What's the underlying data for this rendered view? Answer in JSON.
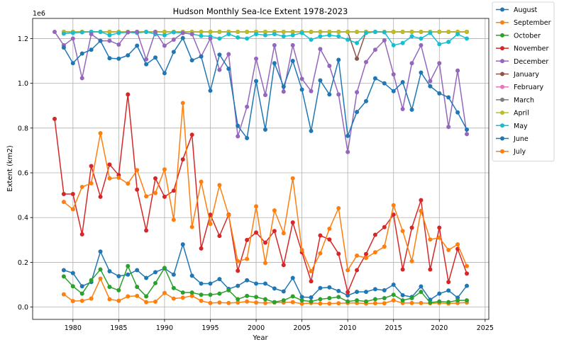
{
  "chart_data": {
    "type": "line",
    "title": "Hudson Monthly Sea-Ice Extent 1978-2023",
    "xlabel": "Year",
    "ylabel": "Extent (km2)",
    "y_offset_label": "1e6",
    "xlim": [
      1975.6,
      2025.4
    ],
    "ylim": [
      -0.055,
      1.29
    ],
    "x_ticks": [
      1980,
      1985,
      1990,
      1995,
      2000,
      2005,
      2010,
      2015,
      2020,
      2025
    ],
    "y_ticks": [
      0.0,
      0.2,
      0.4,
      0.6,
      0.8,
      1.0,
      1.2
    ],
    "y_tick_labels": [
      "0.0",
      "0.2",
      "0.4",
      "0.6",
      "0.8",
      "1.0",
      "1.2"
    ],
    "grid": true,
    "legend_position": "outside-right",
    "years": [
      1979,
      1980,
      1981,
      1982,
      1983,
      1984,
      1985,
      1986,
      1987,
      1988,
      1989,
      1990,
      1991,
      1992,
      1993,
      1994,
      1995,
      1996,
      1997,
      1998,
      1999,
      2000,
      2001,
      2002,
      2003,
      2004,
      2005,
      2006,
      2007,
      2008,
      2009,
      2010,
      2011,
      2012,
      2013,
      2014,
      2015,
      2016,
      2017,
      2018,
      2019,
      2020,
      2021,
      2022,
      2023
    ],
    "series": [
      {
        "name": "August",
        "color": "#1f77b4",
        "start": 1979,
        "values": [
          0.165,
          0.152,
          0.093,
          0.112,
          0.248,
          0.16,
          0.138,
          0.145,
          0.165,
          0.13,
          0.156,
          0.173,
          0.145,
          0.28,
          0.14,
          0.105,
          0.105,
          0.125,
          0.081,
          0.095,
          0.12,
          0.105,
          0.105,
          0.083,
          0.07,
          0.13,
          0.045,
          0.043,
          0.085,
          0.088,
          0.072,
          0.052,
          0.068,
          0.068,
          0.08,
          0.075,
          0.1,
          0.053,
          0.045,
          0.092,
          0.033,
          0.06,
          0.074,
          0.042,
          0.095
        ]
      },
      {
        "name": "September",
        "color": "#ff7f0e",
        "start": 1979,
        "values": [
          0.057,
          0.027,
          0.028,
          0.038,
          0.127,
          0.035,
          0.028,
          0.048,
          0.05,
          0.022,
          0.024,
          0.063,
          0.038,
          0.042,
          0.05,
          0.028,
          0.018,
          0.02,
          0.018,
          0.02,
          0.025,
          0.02,
          0.018,
          0.02,
          0.02,
          0.022,
          0.015,
          0.018,
          0.016,
          0.016,
          0.017,
          0.018,
          0.018,
          0.016,
          0.017,
          0.017,
          0.03,
          0.018,
          0.018,
          0.018,
          0.017,
          0.018,
          0.016,
          0.018,
          0.02
        ]
      },
      {
        "name": "October",
        "color": "#2ca02c",
        "start": 1979,
        "values": [
          0.137,
          0.093,
          0.06,
          0.12,
          0.168,
          0.09,
          0.075,
          0.183,
          0.09,
          0.048,
          0.107,
          0.175,
          0.085,
          0.065,
          0.065,
          0.055,
          0.055,
          0.06,
          0.075,
          0.035,
          0.05,
          0.045,
          0.035,
          0.022,
          0.03,
          0.048,
          0.03,
          0.025,
          0.035,
          0.04,
          0.045,
          0.025,
          0.03,
          0.025,
          0.035,
          0.04,
          0.055,
          0.03,
          0.04,
          0.068,
          0.02,
          0.025,
          0.022,
          0.03,
          0.03
        ]
      },
      {
        "name": "November",
        "color": "#d62728",
        "start": 1978,
        "values": [
          0.841,
          0.505,
          0.505,
          0.325,
          0.63,
          0.493,
          0.637,
          0.59,
          0.95,
          0.525,
          0.342,
          0.575,
          0.493,
          0.52,
          0.66,
          0.77,
          0.262,
          0.413,
          0.318,
          0.413,
          0.162,
          0.3,
          0.333,
          0.288,
          0.34,
          0.188,
          0.378,
          0.245,
          0.115,
          0.32,
          0.302,
          0.238,
          0.067,
          0.165,
          0.237,
          0.323,
          0.357,
          0.413,
          0.168,
          0.355,
          0.478,
          0.168,
          0.355,
          0.112,
          0.26,
          0.15
        ]
      },
      {
        "name": "December",
        "color": "#9467bd",
        "start": 1978,
        "values": [
          1.23,
          1.17,
          1.2,
          1.023,
          1.22,
          1.19,
          1.19,
          1.173,
          1.228,
          1.23,
          1.107,
          1.23,
          1.168,
          1.195,
          1.225,
          1.22,
          1.12,
          1.2,
          1.06,
          1.13,
          0.763,
          0.895,
          1.11,
          0.948,
          1.17,
          0.963,
          1.17,
          1.02,
          0.965,
          1.153,
          1.078,
          0.95,
          0.693,
          0.96,
          1.095,
          1.15,
          1.192,
          1.04,
          0.885,
          1.09,
          1.17,
          1.01,
          1.09,
          0.805,
          1.057,
          0.773
        ]
      },
      {
        "name": "January",
        "color": "#8c564b",
        "start": 1979,
        "values": [
          1.23,
          1.23,
          1.23,
          1.23,
          1.23,
          1.23,
          1.23,
          1.23,
          1.23,
          1.23,
          1.23,
          1.23,
          1.23,
          1.23,
          1.23,
          1.23,
          1.23,
          1.23,
          1.23,
          1.23,
          1.23,
          1.23,
          1.23,
          1.23,
          1.23,
          1.23,
          1.23,
          1.23,
          1.23,
          1.23,
          1.23,
          1.23,
          1.11,
          1.23,
          1.23,
          1.23,
          1.23,
          1.23,
          1.23,
          1.23,
          1.23,
          1.23,
          1.23,
          1.23,
          1.23
        ]
      },
      {
        "name": "February",
        "color": "#e377c2",
        "start": 1979,
        "values": [
          1.23,
          1.23,
          1.23,
          1.23,
          1.23,
          1.23,
          1.23,
          1.23,
          1.23,
          1.23,
          1.23,
          1.23,
          1.23,
          1.23,
          1.23,
          1.23,
          1.23,
          1.23,
          1.23,
          1.23,
          1.23,
          1.23,
          1.23,
          1.23,
          1.23,
          1.23,
          1.23,
          1.23,
          1.23,
          1.23,
          1.23,
          1.23,
          1.23,
          1.23,
          1.23,
          1.23,
          1.23,
          1.23,
          1.23,
          1.23,
          1.23,
          1.23,
          1.23,
          1.23,
          1.23
        ]
      },
      {
        "name": "March",
        "color": "#7f7f7f",
        "start": 1979,
        "values": [
          1.23,
          1.23,
          1.23,
          1.23,
          1.23,
          1.23,
          1.23,
          1.23,
          1.23,
          1.23,
          1.23,
          1.23,
          1.23,
          1.23,
          1.23,
          1.23,
          1.23,
          1.23,
          1.23,
          1.23,
          1.23,
          1.23,
          1.23,
          1.23,
          1.23,
          1.23,
          1.23,
          1.23,
          1.23,
          1.23,
          1.23,
          1.23,
          1.23,
          1.23,
          1.23,
          1.23,
          1.23,
          1.23,
          1.23,
          1.23,
          1.23,
          1.23,
          1.23,
          1.23,
          1.23
        ]
      },
      {
        "name": "April",
        "color": "#bcbd22",
        "start": 1979,
        "values": [
          1.23,
          1.23,
          1.23,
          1.23,
          1.23,
          1.23,
          1.23,
          1.23,
          1.23,
          1.23,
          1.23,
          1.23,
          1.23,
          1.23,
          1.23,
          1.23,
          1.23,
          1.23,
          1.23,
          1.23,
          1.23,
          1.23,
          1.23,
          1.23,
          1.23,
          1.23,
          1.23,
          1.23,
          1.23,
          1.23,
          1.23,
          1.23,
          1.23,
          1.23,
          1.23,
          1.23,
          1.23,
          1.23,
          1.23,
          1.23,
          1.23,
          1.23,
          1.23,
          1.23,
          1.23
        ]
      },
      {
        "name": "May",
        "color": "#17becf",
        "start": 1979,
        "values": [
          1.222,
          1.225,
          1.228,
          1.23,
          1.23,
          1.215,
          1.225,
          1.228,
          1.225,
          1.23,
          1.22,
          1.215,
          1.228,
          1.225,
          1.22,
          1.212,
          1.21,
          1.2,
          1.22,
          1.205,
          1.2,
          1.22,
          1.215,
          1.22,
          1.21,
          1.215,
          1.225,
          1.195,
          1.21,
          1.215,
          1.21,
          1.195,
          1.18,
          1.225,
          1.23,
          1.228,
          1.17,
          1.18,
          1.21,
          1.2,
          1.225,
          1.175,
          1.185,
          1.22,
          1.2
        ]
      },
      {
        "name": "June",
        "color": "#1f77b4",
        "start": 1979,
        "values": [
          1.16,
          1.09,
          1.133,
          1.15,
          1.19,
          1.112,
          1.11,
          1.125,
          1.168,
          1.085,
          1.115,
          1.045,
          1.14,
          1.202,
          1.103,
          1.12,
          0.967,
          1.128,
          1.065,
          0.81,
          0.755,
          1.01,
          0.793,
          1.09,
          0.985,
          1.1,
          0.972,
          0.787,
          1.013,
          0.95,
          1.105,
          0.765,
          0.872,
          0.92,
          1.022,
          1.0,
          0.965,
          1.005,
          0.882,
          1.048,
          0.987,
          0.955,
          0.937,
          0.87,
          0.793
        ]
      },
      {
        "name": "July",
        "color": "#ff7f0e",
        "start": 1979,
        "values": [
          0.47,
          0.437,
          0.537,
          0.553,
          0.777,
          0.575,
          0.578,
          0.552,
          0.612,
          0.495,
          0.51,
          0.615,
          0.39,
          0.912,
          0.358,
          0.56,
          0.372,
          0.545,
          0.41,
          0.205,
          0.215,
          0.45,
          0.197,
          0.432,
          0.33,
          0.575,
          0.255,
          0.16,
          0.24,
          0.35,
          0.442,
          0.165,
          0.23,
          0.22,
          0.245,
          0.27,
          0.455,
          0.34,
          0.205,
          0.43,
          0.302,
          0.31,
          0.255,
          0.28,
          0.183
        ]
      }
    ]
  }
}
